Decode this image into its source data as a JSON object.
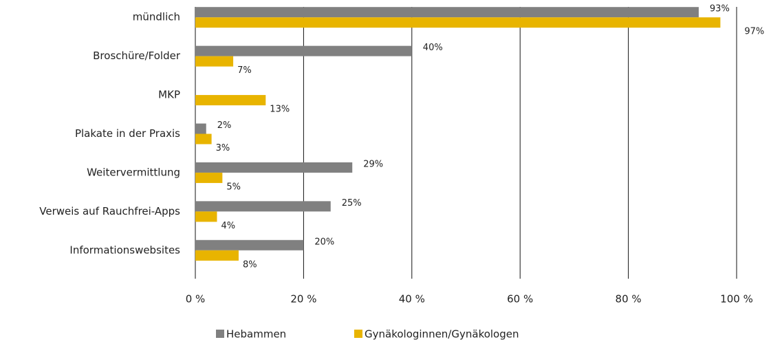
{
  "chart_data": {
    "type": "hbar",
    "categories": [
      "mündlich",
      "Broschüre/Folder",
      "MKP",
      "Plakate in der Praxis",
      "Weitervermittlung",
      "Verweis auf Rauchfrei-Apps",
      "Informationswebsites"
    ],
    "series": [
      {
        "name": "Hebammen",
        "color": "#808080",
        "values": [
          93,
          40,
          null,
          2,
          29,
          25,
          20
        ],
        "value_labels": [
          "93%",
          "40%",
          null,
          "2%",
          "29%",
          "25%",
          "20%"
        ]
      },
      {
        "name": "Gynäkologinnen/Gynäkologen",
        "color": "#e8b400",
        "values": [
          97,
          7,
          13,
          3,
          5,
          4,
          8
        ],
        "value_labels": [
          "97%",
          "7%",
          "13%",
          "3%",
          "5%",
          "4%",
          "8%"
        ]
      }
    ],
    "xlim": [
      0,
      100
    ],
    "xticks": [
      {
        "value": 0,
        "label": "0 %"
      },
      {
        "value": 20,
        "label": "20 %"
      },
      {
        "value": 40,
        "label": "40 %"
      },
      {
        "value": 60,
        "label": "60 %"
      },
      {
        "value": 80,
        "label": "80 %"
      },
      {
        "value": 100,
        "label": "100 %"
      }
    ],
    "grid": true,
    "legend": "bottom"
  }
}
